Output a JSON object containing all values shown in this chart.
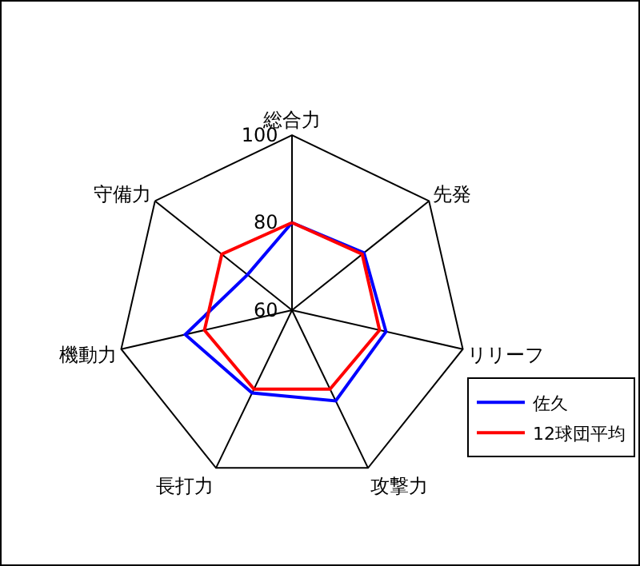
{
  "chart_data": {
    "type": "radar",
    "categories": [
      "総合力",
      "先発",
      "リリーフ",
      "攻撃力",
      "長打力",
      "機動力",
      "守備力"
    ],
    "series": [
      {
        "name": "佐久",
        "color": "#0000ff",
        "values": [
          80,
          81,
          82,
          83,
          81,
          85,
          73
        ]
      },
      {
        "name": "12球団平均",
        "color": "#ff0000",
        "values": [
          80,
          80.5,
          80.5,
          80,
          80,
          80.5,
          80.5
        ]
      }
    ],
    "ylim": [
      60,
      100
    ],
    "yticks": [
      60,
      80,
      100
    ],
    "grid": "x",
    "legend": "bottom right",
    "marker": "none",
    "line_style": "solid"
  }
}
